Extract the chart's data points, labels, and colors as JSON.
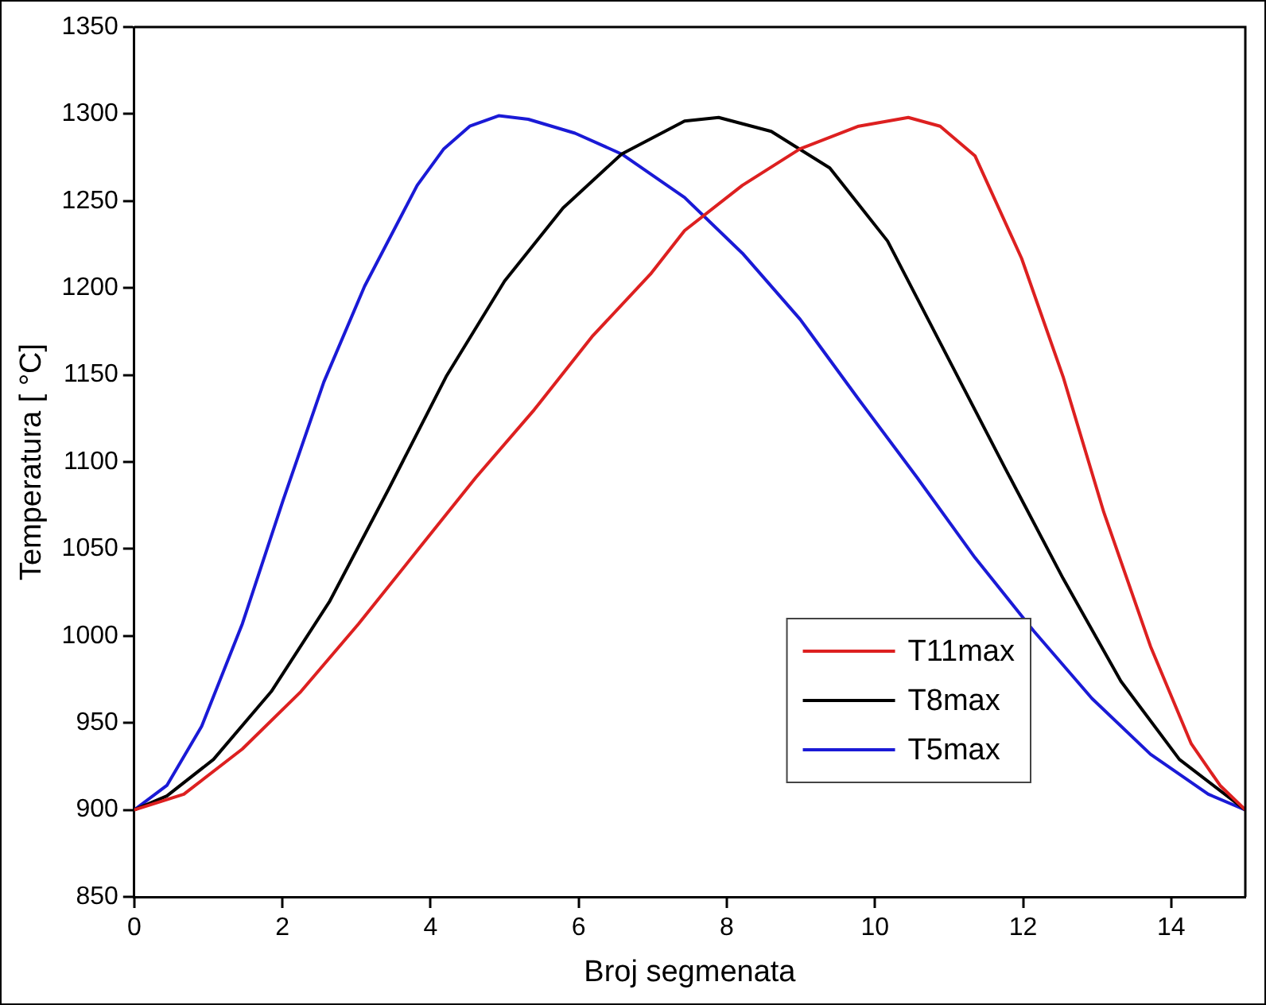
{
  "chart_data": {
    "type": "line",
    "xlabel": "Broj segmenata",
    "ylabel": "Temperatura [ °C]",
    "xlim": [
      0,
      15
    ],
    "xticks": [
      0,
      2,
      4,
      6,
      8,
      10,
      12,
      14
    ],
    "ylim": [
      850,
      1350
    ],
    "yticks": [
      850,
      900,
      950,
      1000,
      1050,
      1100,
      1150,
      1200,
      1250,
      1300,
      1350
    ],
    "grid": false,
    "legend": "bottom right",
    "marker": "none",
    "line_style": "solid",
    "series": [
      {
        "name": "T11max",
        "color": "#dd2020",
        "x": [
          0,
          0.67,
          1.46,
          2.25,
          3.03,
          3.82,
          4.61,
          5.4,
          6.18,
          6.97,
          7.43,
          8.21,
          8.99,
          9.78,
          10.45,
          10.88,
          11.35,
          11.98,
          12.54,
          13.09,
          13.72,
          14.27,
          14.66,
          15
        ],
        "values": [
          900,
          909,
          935,
          968,
          1007,
          1049,
          1091,
          1130,
          1172,
          1208,
          1233,
          1259,
          1280,
          1293,
          1298,
          1293,
          1276,
          1217,
          1149,
          1071,
          994,
          938,
          914,
          900
        ]
      },
      {
        "name": "T8max",
        "color": "#000000",
        "x": [
          0,
          0.44,
          1.07,
          1.85,
          2.64,
          3.43,
          4.21,
          5.0,
          5.79,
          6.58,
          7.43,
          7.89,
          8.6,
          9.39,
          10.17,
          10.96,
          11.75,
          12.54,
          13.32,
          14.11,
          15
        ],
        "values": [
          900,
          908,
          929,
          968,
          1020,
          1084,
          1149,
          1204,
          1246,
          1277,
          1296,
          1298,
          1290,
          1269,
          1227,
          1162,
          1097,
          1033,
          974,
          929,
          900
        ]
      },
      {
        "name": "T5max",
        "color": "#1a1ad6",
        "x": [
          0,
          0.44,
          0.91,
          1.46,
          2.01,
          2.56,
          3.11,
          3.82,
          4.18,
          4.53,
          4.92,
          5.32,
          5.95,
          6.58,
          7.43,
          8.21,
          8.99,
          9.78,
          10.57,
          11.35,
          12.14,
          12.93,
          13.72,
          14.5,
          15
        ],
        "values": [
          900,
          914,
          948,
          1007,
          1078,
          1146,
          1201,
          1259,
          1280,
          1293,
          1299,
          1297,
          1289,
          1277,
          1252,
          1220,
          1182,
          1136,
          1091,
          1045,
          1003,
          964,
          932,
          909,
          900
        ]
      }
    ]
  }
}
